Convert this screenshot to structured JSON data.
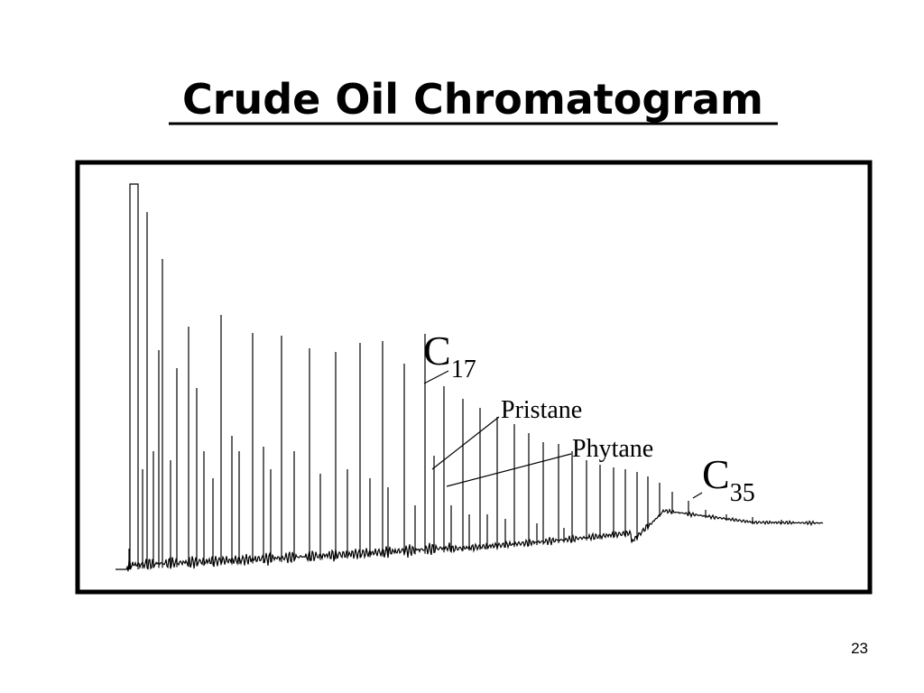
{
  "title": "Crude Oil Chromatogram",
  "annotations": [
    {
      "base": "C",
      "sub": "17"
    },
    {
      "text": "Pristane"
    },
    {
      "text": "Phytane"
    },
    {
      "base": "C",
      "sub": "35"
    }
  ],
  "page_number": "23"
}
